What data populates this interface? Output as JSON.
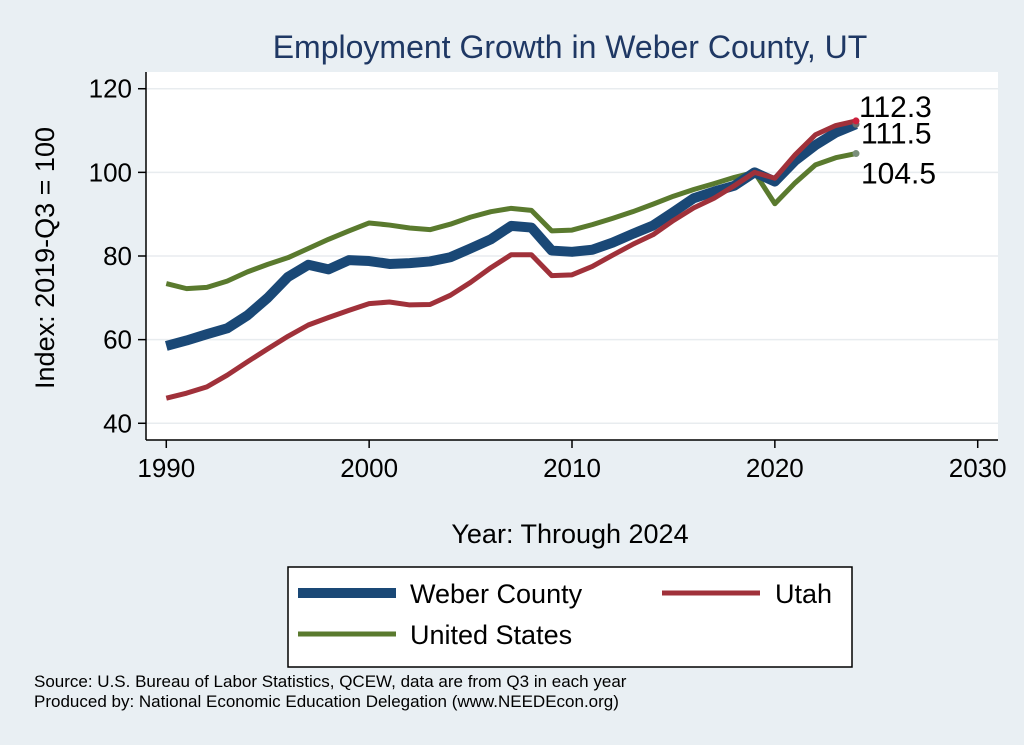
{
  "chart_data": {
    "type": "line",
    "title": "Employment Growth in Weber County, UT",
    "xlabel": "Year: Through 2024",
    "ylabel": "Index: 2019-Q3 = 100",
    "xlim": [
      1989,
      2031
    ],
    "ylim": [
      36,
      124
    ],
    "xticks": [
      1990,
      2000,
      2010,
      2020,
      2030
    ],
    "yticks": [
      40,
      60,
      80,
      100,
      120
    ],
    "grid": "horizontal",
    "legend_position": "bottom",
    "x": [
      1990,
      1991,
      1992,
      1993,
      1994,
      1995,
      1996,
      1997,
      1998,
      1999,
      2000,
      2001,
      2002,
      2003,
      2004,
      2005,
      2006,
      2007,
      2008,
      2009,
      2010,
      2011,
      2012,
      2013,
      2014,
      2015,
      2016,
      2017,
      2018,
      2019,
      2020,
      2021,
      2022,
      2023,
      2024
    ],
    "series": [
      {
        "name": "Weber  County",
        "color": "#1a4876",
        "width": 10,
        "values": [
          58.5,
          59.8,
          61.3,
          62.7,
          65.8,
          70.0,
          75.0,
          77.9,
          76.8,
          79.0,
          78.8,
          78.1,
          78.3,
          78.7,
          79.7,
          81.8,
          84.0,
          87.2,
          86.8,
          81.3,
          81.0,
          81.5,
          83.2,
          85.3,
          87.3,
          90.5,
          93.8,
          95.4,
          96.8,
          100.0,
          97.8,
          102.8,
          106.5,
          109.5,
          111.5
        ],
        "end_label": "111.5"
      },
      {
        "name": "Utah",
        "color": "#a0313a",
        "width": 5,
        "values": [
          46.0,
          47.2,
          48.7,
          51.5,
          54.7,
          57.8,
          60.8,
          63.5,
          65.3,
          67.0,
          68.6,
          69.0,
          68.3,
          68.4,
          70.6,
          73.7,
          77.2,
          80.3,
          80.3,
          75.3,
          75.5,
          77.5,
          80.2,
          82.8,
          85.1,
          88.5,
          91.5,
          93.8,
          96.8,
          100.0,
          98.6,
          104.2,
          109.0,
          111.2,
          112.3
        ],
        "end_label": "112.3"
      },
      {
        "name": "United States",
        "color": "#5a7a2e",
        "width": 5,
        "values": [
          73.4,
          72.2,
          72.5,
          74.0,
          76.2,
          78.0,
          79.6,
          81.8,
          84.0,
          86.0,
          87.9,
          87.4,
          86.7,
          86.3,
          87.6,
          89.3,
          90.6,
          91.4,
          90.9,
          86.0,
          86.2,
          87.5,
          89.0,
          90.6,
          92.4,
          94.3,
          95.9,
          97.3,
          98.8,
          100.0,
          92.5,
          97.5,
          101.8,
          103.5,
          104.5
        ],
        "end_label": "104.5"
      }
    ],
    "end_dot_colors": [
      "#6c6c6c",
      "#cc1f3c",
      "#7a8f7a"
    ]
  },
  "footer": {
    "source": "Source: U.S. Bureau of Labor Statistics, QCEW, data are from Q3 in each year",
    "produced_by": "Produced by: National Economic Education Delegation (www.NEEDEcon.org)"
  }
}
